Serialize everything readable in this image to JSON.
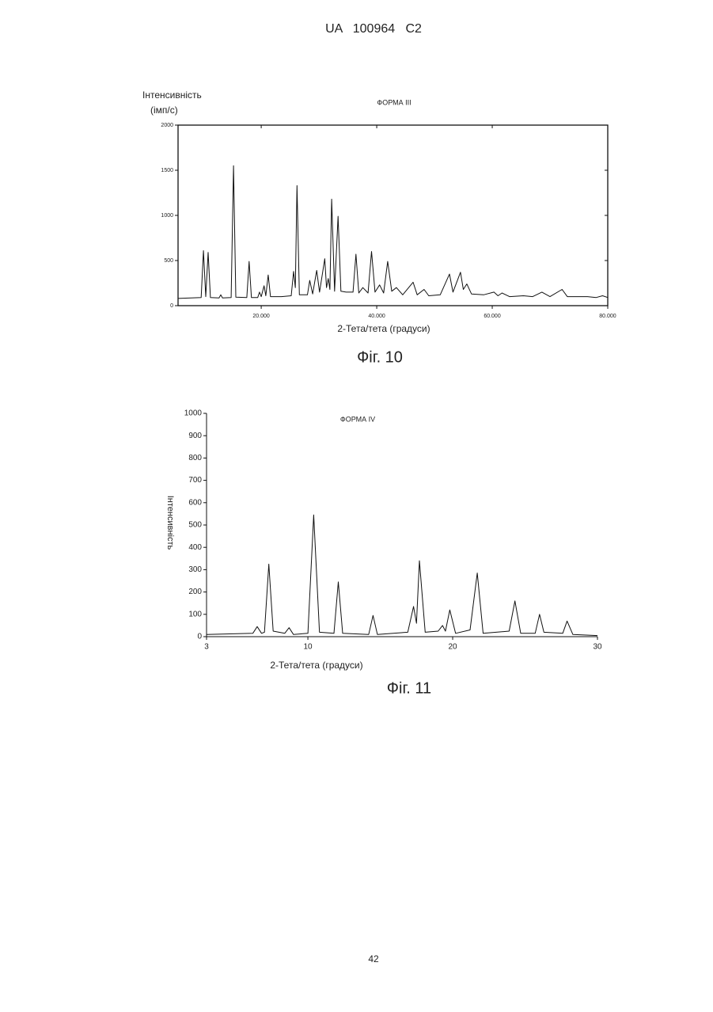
{
  "header": "UA   100964   C2",
  "page_number": "42",
  "chart_data": [
    {
      "type": "line",
      "title": "ФОРМА III",
      "ylabel": "Інтенсивність",
      "ylabel_unit": "(імп/с)",
      "xlabel": "2-Тета/тета (градуси)",
      "caption": "Фіг. 10",
      "color": "#111111",
      "xlim": [
        5.6,
        80
      ],
      "ylim": [
        0,
        2000
      ],
      "xticks": [
        {
          "value": 20,
          "label": "20.000"
        },
        {
          "value": 40,
          "label": "40.000"
        },
        {
          "value": 60,
          "label": "60.000"
        },
        {
          "value": 80,
          "label": "80.000"
        }
      ],
      "yticks": [
        0,
        500,
        1000,
        1500,
        2000
      ],
      "frame": "box",
      "x": [
        5.6,
        9.6,
        10.0,
        10.4,
        10.8,
        11.2,
        12.7,
        13.0,
        13.3,
        14.8,
        15.2,
        15.6,
        17.5,
        17.9,
        18.3,
        19.4,
        19.7,
        20.0,
        20.5,
        20.8,
        21.2,
        21.6,
        23.5,
        25.2,
        25.6,
        25.9,
        26.2,
        26.6,
        28.0,
        28.4,
        28.9,
        29.6,
        30.1,
        31.0,
        31.3,
        31.6,
        31.9,
        32.2,
        32.7,
        33.3,
        33.8,
        34.7,
        35.9,
        36.4,
        36.9,
        37.6,
        38.5,
        39.1,
        39.7,
        40.5,
        41.2,
        41.9,
        42.6,
        43.4,
        44.5,
        46.3,
        47.0,
        48.2,
        49.0,
        51.0,
        52.6,
        53.2,
        54.5,
        55.0,
        55.6,
        56.4,
        58.5,
        60.3,
        61.0,
        61.7,
        63.0,
        65.4,
        67.0,
        68.6,
        70.0,
        72.1,
        73.0,
        76.5,
        78.0,
        79.1,
        80.0
      ],
      "values": [
        80,
        90,
        610,
        100,
        590,
        90,
        85,
        120,
        85,
        90,
        1550,
        95,
        90,
        490,
        90,
        90,
        150,
        100,
        220,
        110,
        340,
        100,
        100,
        110,
        380,
        200,
        1330,
        120,
        120,
        280,
        130,
        390,
        150,
        520,
        200,
        300,
        180,
        1180,
        160,
        990,
        160,
        150,
        150,
        570,
        140,
        200,
        140,
        600,
        150,
        230,
        140,
        490,
        160,
        200,
        120,
        260,
        120,
        180,
        110,
        120,
        350,
        150,
        370,
        180,
        240,
        130,
        120,
        150,
        110,
        140,
        100,
        110,
        100,
        150,
        100,
        180,
        100,
        100,
        90,
        110,
        90
      ]
    },
    {
      "type": "line",
      "title": "ФОРМА IV",
      "ylabel": "Інтенсивність",
      "xlabel": "2-Тета/тета (градуси)",
      "caption": "Фіг. 11",
      "color": "#111111",
      "xlim": [
        3,
        30
      ],
      "ylim": [
        0,
        1000
      ],
      "xticks": [
        3,
        10,
        20,
        30
      ],
      "yticks": [
        0,
        100,
        200,
        300,
        400,
        500,
        600,
        700,
        800,
        900,
        1000
      ],
      "frame": "axes",
      "x": [
        3,
        6.2,
        6.5,
        6.8,
        7.0,
        7.3,
        7.6,
        8.4,
        8.7,
        9.0,
        10.0,
        10.4,
        10.8,
        11.8,
        12.1,
        12.4,
        14.2,
        14.5,
        14.8,
        16.9,
        17.3,
        17.5,
        17.7,
        18.1,
        19.0,
        19.3,
        19.5,
        19.8,
        20.2,
        21.2,
        21.7,
        22.1,
        23.9,
        24.3,
        24.7,
        25.7,
        26.0,
        26.3,
        27.6,
        27.9,
        28.3,
        30
      ],
      "values": [
        10,
        15,
        45,
        15,
        20,
        325,
        25,
        15,
        40,
        10,
        15,
        545,
        20,
        15,
        245,
        15,
        10,
        95,
        10,
        20,
        135,
        60,
        340,
        20,
        25,
        50,
        25,
        120,
        15,
        30,
        285,
        15,
        25,
        160,
        15,
        15,
        100,
        20,
        15,
        70,
        10,
        5
      ]
    }
  ]
}
